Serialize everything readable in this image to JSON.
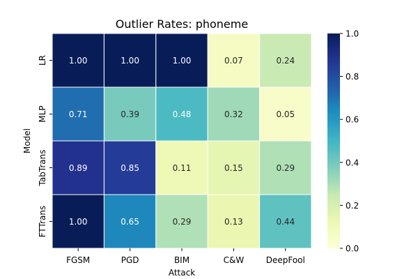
{
  "chart_data": {
    "type": "heatmap",
    "title": "Outlier Rates: phoneme",
    "xlabel": "Attack",
    "ylabel": "Model",
    "x_categories": [
      "FGSM",
      "PGD",
      "BIM",
      "C&W",
      "DeepFool"
    ],
    "y_categories": [
      "LR",
      "MLP",
      "TabTrans",
      "FTTrans"
    ],
    "values": [
      [
        1.0,
        1.0,
        1.0,
        0.07,
        0.24
      ],
      [
        0.71,
        0.39,
        0.48,
        0.32,
        0.05
      ],
      [
        0.89,
        0.85,
        0.11,
        0.15,
        0.29
      ],
      [
        1.0,
        0.65,
        0.29,
        0.13,
        0.44
      ]
    ],
    "value_labels": [
      [
        "1.00",
        "1.00",
        "1.00",
        "0.07",
        "0.24"
      ],
      [
        "0.71",
        "0.39",
        "0.48",
        "0.32",
        "0.05"
      ],
      [
        "0.89",
        "0.85",
        "0.11",
        "0.15",
        "0.29"
      ],
      [
        "1.00",
        "0.65",
        "0.29",
        "0.13",
        "0.44"
      ]
    ],
    "colorbar": {
      "vmin": 0.0,
      "vmax": 1.0,
      "ticks": [
        0.0,
        0.2,
        0.4,
        0.6,
        0.8,
        1.0
      ],
      "tick_labels": [
        "0.0",
        "0.2",
        "0.4",
        "0.6",
        "0.8",
        "1.0"
      ]
    },
    "colormap": "YlGnBu"
  }
}
